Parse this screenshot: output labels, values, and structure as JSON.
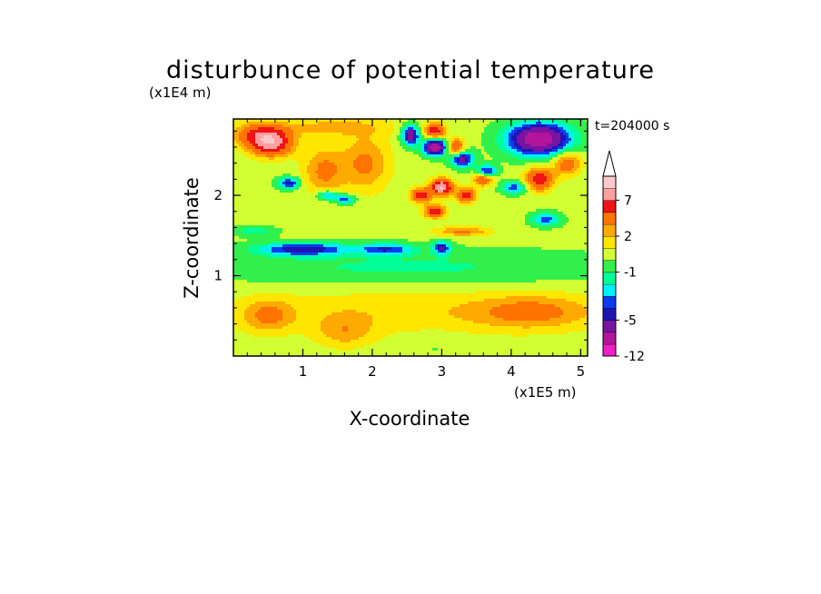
{
  "chart_data": {
    "type": "heatmap",
    "title": "disturbunce of potential temperature",
    "time_label": "t=204000 s",
    "x_axis": {
      "label": "X-coordinate",
      "unit_label": "(x1E5 m)",
      "range": [
        0.0,
        5.1
      ],
      "ticks": [
        1,
        2,
        3,
        4,
        5
      ],
      "tick_labels": [
        "1",
        "2",
        "3",
        "4",
        "5"
      ]
    },
    "y_axis": {
      "label": "Z-coordinate",
      "unit_label": "(x1E4 m)",
      "range": [
        0.0,
        2.95
      ],
      "ticks": [
        1,
        2
      ],
      "tick_labels": [
        "1",
        "2"
      ]
    },
    "colorbar": {
      "levels": [
        -12,
        -9,
        -7,
        -5,
        -4,
        -3,
        -2,
        -1,
        0,
        1,
        2,
        3,
        5,
        7,
        9,
        12
      ],
      "level_labels": [
        "-12",
        "-5",
        "-1",
        "2",
        "7"
      ],
      "label_levels": [
        -12,
        -5,
        -1,
        2,
        7
      ],
      "colors": [
        "#f01ec8",
        "#b4149b",
        "#7814a0",
        "#1e14b4",
        "#0a3cf0",
        "#00f0ff",
        "#00ff96",
        "#32f04b",
        "#d2ff32",
        "#ffe600",
        "#ffaa00",
        "#ff7300",
        "#f01414",
        "#ffa0a0",
        "#ffc8c8"
      ],
      "extend": "max"
    },
    "features": [
      {
        "x": 0.55,
        "z": 2.65,
        "v": 7,
        "rx": 0.3,
        "rz": 0.16
      },
      {
        "x": 0.35,
        "z": 2.75,
        "v": 4,
        "rx": 0.35,
        "rz": 0.15
      },
      {
        "x": 1.4,
        "z": 2.85,
        "v": 2,
        "rx": 0.9,
        "rz": 0.12
      },
      {
        "x": 2.55,
        "z": 2.75,
        "v": -7,
        "rx": 0.12,
        "rz": 0.12
      },
      {
        "x": 2.9,
        "z": 2.6,
        "v": -9,
        "rx": 0.16,
        "rz": 0.1
      },
      {
        "x": 3.3,
        "z": 2.45,
        "v": -6,
        "rx": 0.16,
        "rz": 0.1
      },
      {
        "x": 3.65,
        "z": 2.3,
        "v": -5,
        "rx": 0.13,
        "rz": 0.08
      },
      {
        "x": 4.05,
        "z": 2.1,
        "v": -4,
        "rx": 0.18,
        "rz": 0.08
      },
      {
        "x": 4.5,
        "z": 1.7,
        "v": -4,
        "rx": 0.2,
        "rz": 0.08
      },
      {
        "x": 4.4,
        "z": 2.7,
        "v": -9,
        "rx": 0.45,
        "rz": 0.2
      },
      {
        "x": 2.9,
        "z": 2.8,
        "v": 6,
        "rx": 0.14,
        "rz": 0.1
      },
      {
        "x": 3.2,
        "z": 2.6,
        "v": 5,
        "rx": 0.12,
        "rz": 0.1
      },
      {
        "x": 3.0,
        "z": 2.1,
        "v": 9,
        "rx": 0.15,
        "rz": 0.1
      },
      {
        "x": 2.7,
        "z": 2.0,
        "v": 6,
        "rx": 0.14,
        "rz": 0.09
      },
      {
        "x": 3.35,
        "z": 2.0,
        "v": 6,
        "rx": 0.13,
        "rz": 0.09
      },
      {
        "x": 3.6,
        "z": 2.2,
        "v": 5,
        "rx": 0.13,
        "rz": 0.08
      },
      {
        "x": 2.9,
        "z": 1.8,
        "v": 6,
        "rx": 0.15,
        "rz": 0.08
      },
      {
        "x": 4.4,
        "z": 2.2,
        "v": 6,
        "rx": 0.2,
        "rz": 0.14
      },
      {
        "x": 4.8,
        "z": 2.4,
        "v": 4,
        "rx": 0.2,
        "rz": 0.15
      },
      {
        "x": 1.9,
        "z": 2.4,
        "v": 3,
        "rx": 0.35,
        "rz": 0.35
      },
      {
        "x": 1.3,
        "z": 2.3,
        "v": 3,
        "rx": 0.3,
        "rz": 0.3
      },
      {
        "x": 0.8,
        "z": 2.15,
        "v": -5,
        "rx": 0.15,
        "rz": 0.07
      },
      {
        "x": 1.35,
        "z": 2.0,
        "v": -4,
        "rx": 0.15,
        "rz": 0.06
      },
      {
        "x": 1.6,
        "z": 1.95,
        "v": -4,
        "rx": 0.15,
        "rz": 0.06
      },
      {
        "x": 0.3,
        "z": 1.55,
        "v": -2,
        "rx": 0.3,
        "rz": 0.06
      },
      {
        "x": 1.0,
        "z": 1.33,
        "v": -5,
        "rx": 0.65,
        "rz": 0.08
      },
      {
        "x": 2.2,
        "z": 1.33,
        "v": -4,
        "rx": 0.4,
        "rz": 0.07
      },
      {
        "x": 3.0,
        "z": 1.35,
        "v": -5,
        "rx": 0.12,
        "rz": 0.08
      },
      {
        "x": 3.3,
        "z": 1.55,
        "v": 3,
        "rx": 0.4,
        "rz": 0.06
      },
      {
        "x": 2.5,
        "z": 1.1,
        "v": -1.5,
        "rx": 3.0,
        "rz": 0.22
      },
      {
        "x": 2.6,
        "z": 0.55,
        "v": 1.5,
        "rx": 3.0,
        "rz": 0.3
      },
      {
        "x": 0.5,
        "z": 0.5,
        "v": 2.5,
        "rx": 0.35,
        "rz": 0.2
      },
      {
        "x": 1.6,
        "z": 0.3,
        "v": 2,
        "rx": 0.4,
        "rz": 0.2
      },
      {
        "x": 2.9,
        "z": 0.15,
        "v": -0.5,
        "rx": 0.4,
        "rz": 0.18
      },
      {
        "x": 4.3,
        "z": 0.55,
        "v": 2.5,
        "rx": 0.8,
        "rz": 0.2
      }
    ]
  }
}
